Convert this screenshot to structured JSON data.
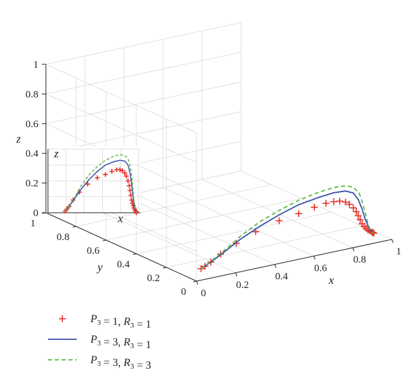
{
  "chart_data": {
    "type": "line",
    "projection": "3d",
    "axes": {
      "x": {
        "label": "x",
        "range": [
          0,
          1
        ],
        "ticks": [
          "0",
          "0.2",
          "0.4",
          "0.6",
          "0.8",
          "1"
        ]
      },
      "y": {
        "label": "y",
        "range": [
          0,
          1
        ],
        "ticks": [
          "0",
          "0.2",
          "0.4",
          "0.6",
          "0.8",
          "1"
        ]
      },
      "z": {
        "label": "z",
        "range": [
          0,
          1
        ],
        "ticks": [
          "0",
          "0.2",
          "0.4",
          "0.6",
          "0.8",
          "1"
        ]
      }
    },
    "grid": true,
    "legend_position": "bottom-left",
    "series": [
      {
        "name": "P3 = 1, R3 = 1",
        "legend": {
          "p": "P",
          "p_sub": "3",
          "p_val": "1",
          "r": "R",
          "r_sub": "3",
          "r_val": "1"
        },
        "style": "markers",
        "marker": "+",
        "color": "#e8312a",
        "x": [
          0.1,
          0.12,
          0.15,
          0.2,
          0.28,
          0.38,
          0.5,
          0.6,
          0.68,
          0.74,
          0.78,
          0.81,
          0.84,
          0.86,
          0.88,
          0.895,
          0.905,
          0.915,
          0.925,
          0.935,
          0.945,
          0.955,
          0.965,
          0.975,
          0.98,
          0.985
        ],
        "y": [
          0.1,
          0.1,
          0.1,
          0.1,
          0.1,
          0.1,
          0.1,
          0.1,
          0.1,
          0.1,
          0.1,
          0.1,
          0.1,
          0.1,
          0.1,
          0.1,
          0.1,
          0.1,
          0.1,
          0.1,
          0.1,
          0.1,
          0.1,
          0.1,
          0.1,
          0.1
        ],
        "z": [
          0.01,
          0.02,
          0.04,
          0.08,
          0.13,
          0.18,
          0.22,
          0.24,
          0.26,
          0.27,
          0.27,
          0.265,
          0.25,
          0.23,
          0.2,
          0.17,
          0.14,
          0.11,
          0.08,
          0.06,
          0.045,
          0.03,
          0.02,
          0.01,
          0.005,
          0.0
        ]
      },
      {
        "name": "P3 = 3, R3 = 1",
        "legend": {
          "p": "P",
          "p_sub": "3",
          "p_val": "3",
          "r": "R",
          "r_sub": "3",
          "r_val": "1"
        },
        "style": "solid",
        "color": "#3a4fa8",
        "x": [
          0.1,
          0.15,
          0.22,
          0.3,
          0.4,
          0.5,
          0.6,
          0.7,
          0.78,
          0.84,
          0.88,
          0.905,
          0.925,
          0.94,
          0.955,
          0.965,
          0.975,
          0.985
        ],
        "y": [
          0.1,
          0.1,
          0.1,
          0.1,
          0.1,
          0.1,
          0.1,
          0.1,
          0.1,
          0.1,
          0.1,
          0.1,
          0.1,
          0.1,
          0.1,
          0.1,
          0.1,
          0.1
        ],
        "z": [
          0.01,
          0.04,
          0.09,
          0.15,
          0.21,
          0.26,
          0.3,
          0.32,
          0.33,
          0.325,
          0.3,
          0.25,
          0.18,
          0.11,
          0.06,
          0.03,
          0.01,
          0.0
        ]
      },
      {
        "name": "P3 = 3, R3 = 3",
        "legend": {
          "p": "P",
          "p_sub": "3",
          "p_val": "3",
          "r": "R",
          "r_sub": "3",
          "r_val": "3"
        },
        "style": "dashed",
        "color": "#5bb84a",
        "x": [
          0.1,
          0.15,
          0.22,
          0.3,
          0.4,
          0.5,
          0.6,
          0.7,
          0.78,
          0.84,
          0.88,
          0.91,
          0.93,
          0.945,
          0.955,
          0.965,
          0.975,
          0.985
        ],
        "y": [
          0.1,
          0.1,
          0.1,
          0.1,
          0.1,
          0.1,
          0.1,
          0.1,
          0.1,
          0.1,
          0.1,
          0.1,
          0.1,
          0.1,
          0.1,
          0.1,
          0.1,
          0.1
        ],
        "z": [
          0.01,
          0.045,
          0.1,
          0.17,
          0.24,
          0.29,
          0.33,
          0.355,
          0.365,
          0.36,
          0.34,
          0.29,
          0.21,
          0.13,
          0.07,
          0.035,
          0.012,
          0.0
        ]
      }
    ],
    "inset": {
      "axis_labels": {
        "x": "x",
        "z": "z"
      },
      "series_indices": [
        0,
        1,
        2
      ]
    }
  }
}
